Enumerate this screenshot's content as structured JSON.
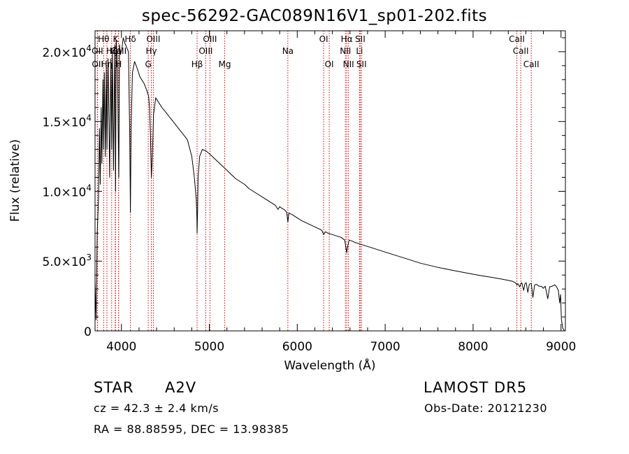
{
  "chart_data": {
    "type": "line",
    "title": "spec-56292-GAC089N16V1_sp01-202.fits",
    "xlabel": "Wavelength (Å)",
    "ylabel": "Flux (relative)",
    "xlim": [
      3700,
      9050
    ],
    "ylim": [
      0,
      21500
    ],
    "x_ticks": [
      4000,
      5000,
      6000,
      7000,
      8000,
      9000
    ],
    "x_tick_labels": [
      "4000",
      "5000",
      "6000",
      "7000",
      "8000",
      "9000"
    ],
    "y_ticks": [
      0,
      5000,
      10000,
      15000,
      20000
    ],
    "y_tick_labels": [
      {
        "mant": "0",
        "exp": ""
      },
      {
        "mant": "5.0×10",
        "exp": "3"
      },
      {
        "mant": "1.0×10",
        "exp": "4"
      },
      {
        "mant": "1.5×10",
        "exp": "4"
      },
      {
        "mant": "2.0×10",
        "exp": "4"
      }
    ],
    "grid": false,
    "series": [
      {
        "color": "#000000",
        "x": [
          3700,
          3712,
          3725,
          3740,
          3750,
          3760,
          3770,
          3778,
          3790,
          3798,
          3806,
          3818,
          3828,
          3836,
          3848,
          3858,
          3866,
          3880,
          3889,
          3898,
          3910,
          3925,
          3933,
          3942,
          3955,
          3963,
          3970,
          3978,
          3990,
          4005,
          4020,
          4040,
          4060,
          4080,
          4094,
          4102,
          4110,
          4125,
          4150,
          4180,
          4210,
          4230,
          4260,
          4290,
          4310,
          4320,
          4330,
          4341,
          4352,
          4365,
          4390,
          4420,
          4460,
          4500,
          4550,
          4600,
          4650,
          4700,
          4750,
          4800,
          4830,
          4850,
          4858,
          4861,
          4866,
          4872,
          4890,
          4920,
          4960,
          5000,
          5050,
          5100,
          5150,
          5200,
          5250,
          5300,
          5350,
          5400,
          5450,
          5500,
          5550,
          5600,
          5650,
          5700,
          5750,
          5780,
          5800,
          5820,
          5850,
          5880,
          5893,
          5905,
          5950,
          6000,
          6050,
          6100,
          6150,
          6200,
          6250,
          6280,
          6300,
          6320,
          6350,
          6400,
          6450,
          6500,
          6540,
          6555,
          6563,
          6572,
          6590,
          6620,
          6650,
          6700,
          6750,
          6800,
          6850,
          6900,
          6950,
          7000,
          7100,
          7200,
          7300,
          7400,
          7500,
          7600,
          7700,
          7800,
          7900,
          8000,
          8100,
          8200,
          8300,
          8400,
          8450,
          8480,
          8498,
          8510,
          8530,
          8542,
          8555,
          8575,
          8590,
          8605,
          8622,
          8640,
          8662,
          8680,
          8700,
          8720,
          8750,
          8780,
          8800,
          8820,
          8850,
          8870,
          8900,
          8930,
          8950,
          8970,
          8985,
          8995,
          9005,
          9020,
          9040
        ],
        "y": [
          3500,
          800,
          7000,
          9500,
          14500,
          10500,
          16000,
          12000,
          18000,
          13000,
          18500,
          12500,
          19000,
          13000,
          19500,
          15000,
          11000,
          19500,
          13000,
          20000,
          11500,
          20500,
          10000,
          20800,
          19000,
          14500,
          11000,
          20500,
          19800,
          20200,
          21000,
          20600,
          20300,
          20000,
          14000,
          8500,
          14500,
          18500,
          19300,
          18800,
          18200,
          18000,
          17700,
          17200,
          16800,
          16000,
          14000,
          11000,
          12500,
          15500,
          16700,
          16400,
          16000,
          15700,
          15300,
          14900,
          14500,
          14100,
          13700,
          12500,
          11000,
          9500,
          8200,
          7000,
          8500,
          11000,
          12500,
          13000,
          12900,
          12700,
          12400,
          12100,
          11800,
          11500,
          11200,
          10900,
          10700,
          10500,
          10200,
          10000,
          9800,
          9600,
          9400,
          9200,
          9000,
          8700,
          8900,
          8800,
          8700,
          8500,
          7800,
          8450,
          8300,
          8100,
          7900,
          7750,
          7600,
          7450,
          7300,
          7200,
          6900,
          7100,
          7000,
          6900,
          6800,
          6700,
          6500,
          5900,
          5600,
          6000,
          6500,
          6450,
          6350,
          6250,
          6150,
          6050,
          5950,
          5850,
          5750,
          5650,
          5450,
          5250,
          5050,
          4850,
          4700,
          4550,
          4420,
          4300,
          4180,
          4060,
          3950,
          3850,
          3740,
          3620,
          3550,
          3450,
          3300,
          3380,
          3150,
          3350,
          3450,
          2900,
          3380,
          3450,
          2750,
          3350,
          3400,
          2400,
          3300,
          3330,
          3200,
          3180,
          3050,
          3200,
          2300,
          3150,
          3200,
          3300,
          3150,
          2900,
          2000,
          2600,
          800,
          200,
          0
        ]
      }
    ],
    "lines": [
      {
        "label": "Hθ",
        "x": 3798,
        "row": 1
      },
      {
        "label": "OII",
        "x": 3727,
        "row": 2
      },
      {
        "label": "OII",
        "x": 3729,
        "row": 3
      },
      {
        "label": "Hη",
        "x": 3835,
        "row": 3
      },
      {
        "label": "Hζ",
        "x": 3889,
        "row": 2
      },
      {
        "label": "He",
        "x": 3930,
        "row": 2
      },
      {
        "label": "K",
        "x": 3934,
        "row": 1
      },
      {
        "label": "H",
        "x": 3968,
        "row": 3
      },
      {
        "label": "CaII",
        "x": 3968,
        "row": 2
      },
      {
        "label": "Hδ",
        "x": 4102,
        "row": 1
      },
      {
        "label": "OIII",
        "x": 4363,
        "row": 1
      },
      {
        "label": "Hγ",
        "x": 4340,
        "row": 2
      },
      {
        "label": "G",
        "x": 4305,
        "row": 3
      },
      {
        "label": "Hβ",
        "x": 4861,
        "row": 3
      },
      {
        "label": "OIII",
        "x": 4959,
        "row": 2
      },
      {
        "label": "OIII",
        "x": 5007,
        "row": 1
      },
      {
        "label": "Mg",
        "x": 5175,
        "row": 3
      },
      {
        "label": "Na",
        "x": 5893,
        "row": 2
      },
      {
        "label": "OI",
        "x": 6300,
        "row": 1
      },
      {
        "label": "OI",
        "x": 6364,
        "row": 3
      },
      {
        "label": "Hα",
        "x": 6563,
        "row": 1
      },
      {
        "label": "NII",
        "x": 6548,
        "row": 2
      },
      {
        "label": "NII",
        "x": 6583,
        "row": 3
      },
      {
        "label": "Li",
        "x": 6708,
        "row": 2
      },
      {
        "label": "SII",
        "x": 6716,
        "row": 1
      },
      {
        "label": "SII",
        "x": 6731,
        "row": 3
      },
      {
        "label": "CaII",
        "x": 8498,
        "row": 1
      },
      {
        "label": "CaII",
        "x": 8542,
        "row": 2
      },
      {
        "label": "CaII",
        "x": 8662,
        "row": 3
      }
    ],
    "line_color": "#d40000"
  },
  "info": {
    "class_label": "STAR",
    "subclass": "A2V",
    "survey": "LAMOST DR5",
    "cz": "cz = 42.3 ± 2.4 km/s",
    "obs_date": "Obs-Date: 20121230",
    "coords": "RA =  88.88595, DEC =  13.98385"
  }
}
